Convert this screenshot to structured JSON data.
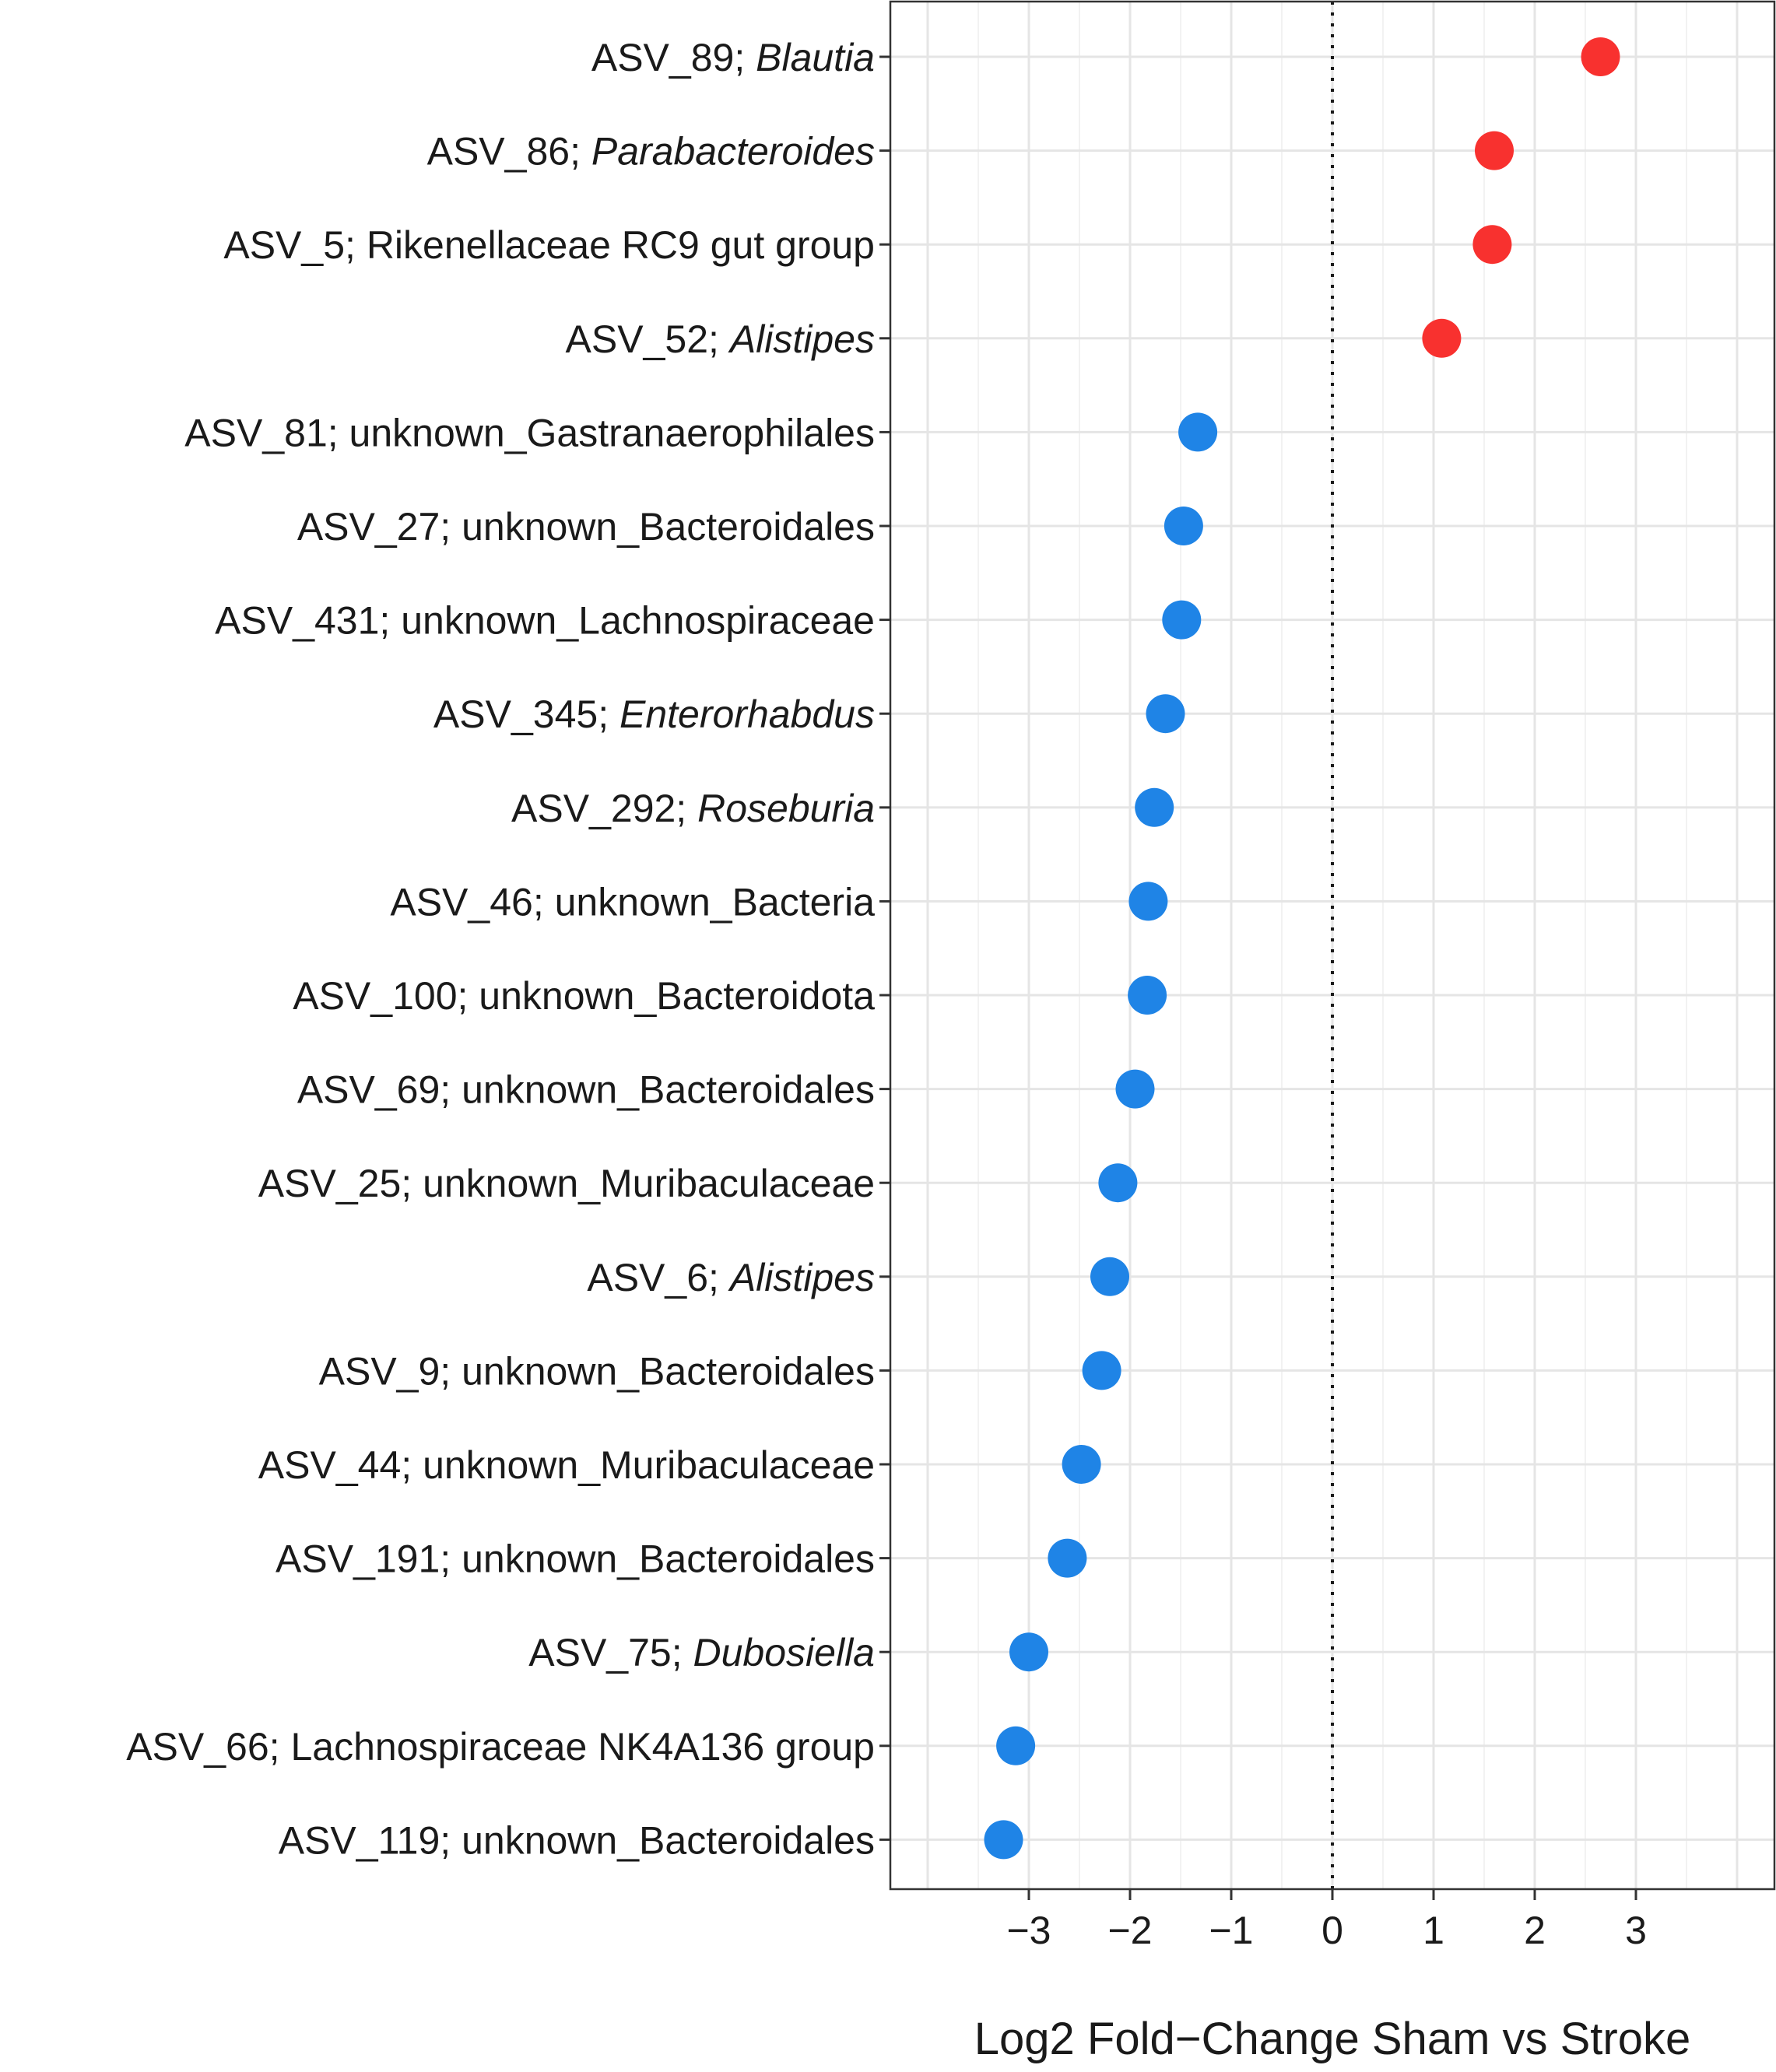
{
  "chart_data": {
    "type": "scatter",
    "title": "",
    "xlabel": "Log2 Fold−Change Sham vs Stroke",
    "ylabel": "",
    "xlim": [
      -4.3,
      4.3
    ],
    "xticks": [
      -3,
      -2,
      -1,
      0,
      1,
      2,
      3
    ],
    "xtick_labels": [
      "−3",
      "−2",
      "−1",
      "0",
      "1",
      "2",
      "3"
    ],
    "reference_line": {
      "x": 0,
      "style": "dotted"
    },
    "grid": true,
    "colors": {
      "positive": "#f8312f",
      "negative": "#1f84e6"
    },
    "points": [
      {
        "asv": "ASV_89; ",
        "taxon": "Blautia",
        "italic": true,
        "value": 2.65
      },
      {
        "asv": "ASV_86; ",
        "taxon": "Parabacteroides",
        "italic": true,
        "value": 1.6
      },
      {
        "asv": "ASV_5; ",
        "taxon": "Rikenellaceae RC9 gut group",
        "italic": false,
        "value": 1.58
      },
      {
        "asv": "ASV_52; ",
        "taxon": "Alistipes",
        "italic": true,
        "value": 1.08
      },
      {
        "asv": "ASV_81; ",
        "taxon": "unknown_Gastranaerophilales",
        "italic": false,
        "value": -1.33
      },
      {
        "asv": "ASV_27; ",
        "taxon": "unknown_Bacteroidales",
        "italic": false,
        "value": -1.47
      },
      {
        "asv": "ASV_431; ",
        "taxon": "unknown_Lachnospiraceae",
        "italic": false,
        "value": -1.49
      },
      {
        "asv": "ASV_345; ",
        "taxon": "Enterorhabdus",
        "italic": true,
        "value": -1.65
      },
      {
        "asv": "ASV_292; ",
        "taxon": "Roseburia",
        "italic": true,
        "value": -1.76
      },
      {
        "asv": "ASV_46; ",
        "taxon": "unknown_Bacteria",
        "italic": false,
        "value": -1.82
      },
      {
        "asv": "ASV_100; ",
        "taxon": "unknown_Bacteroidota",
        "italic": false,
        "value": -1.83
      },
      {
        "asv": "ASV_69; ",
        "taxon": "unknown_Bacteroidales",
        "italic": false,
        "value": -1.95
      },
      {
        "asv": "ASV_25; ",
        "taxon": "unknown_Muribaculaceae",
        "italic": false,
        "value": -2.12
      },
      {
        "asv": "ASV_6; ",
        "taxon": "Alistipes",
        "italic": true,
        "value": -2.2
      },
      {
        "asv": "ASV_9; ",
        "taxon": "unknown_Bacteroidales",
        "italic": false,
        "value": -2.28
      },
      {
        "asv": "ASV_44; ",
        "taxon": "unknown_Muribaculaceae",
        "italic": false,
        "value": -2.48
      },
      {
        "asv": "ASV_191; ",
        "taxon": "unknown_Bacteroidales",
        "italic": false,
        "value": -2.62
      },
      {
        "asv": "ASV_75; ",
        "taxon": "Dubosiella",
        "italic": true,
        "value": -3.0
      },
      {
        "asv": "ASV_66; ",
        "taxon": "Lachnospiraceae NK4A136 group",
        "italic": false,
        "value": -3.13
      },
      {
        "asv": "ASV_119; ",
        "taxon": "unknown_Bacteroidales",
        "italic": false,
        "value": -3.25
      }
    ]
  }
}
